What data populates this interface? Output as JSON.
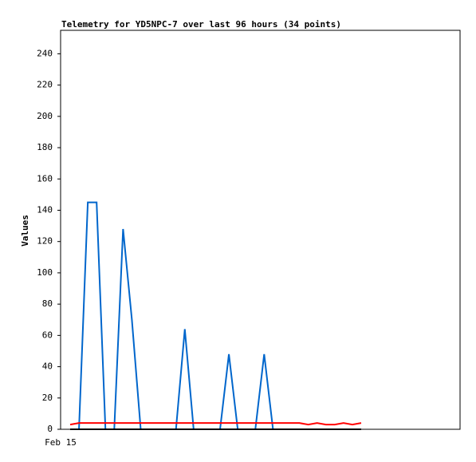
{
  "chart_data": {
    "type": "line",
    "title": "Telemetry for YD5NPC-7 over last 96 hours (34 points)",
    "y_label": "Values",
    "categories": [
      "Feb 15",
      null,
      null,
      null,
      null,
      null,
      null,
      null,
      null,
      null,
      null,
      null,
      null,
      null,
      null,
      null,
      null,
      null,
      null,
      null,
      null,
      null,
      null,
      null,
      null,
      null,
      null,
      null,
      null,
      null,
      null,
      null,
      null,
      null
    ],
    "series": [
      {
        "color": "#0066cc",
        "values": [
          0,
          0,
          145,
          145,
          0,
          0,
          128,
          70,
          0,
          0,
          0,
          0,
          0,
          64,
          0,
          0,
          0,
          0,
          48,
          0,
          0,
          0,
          48,
          0,
          0,
          0,
          0,
          0,
          0,
          0,
          0,
          0,
          0,
          0
        ]
      },
      {
        "color": "#ff0000",
        "values": [
          3,
          4,
          4,
          4,
          4,
          4,
          4,
          4,
          4,
          4,
          4,
          4,
          4,
          4,
          4,
          4,
          4,
          4,
          4,
          4,
          4,
          4,
          4,
          4,
          4,
          4,
          4,
          3,
          4,
          3,
          3,
          4,
          3,
          4
        ]
      },
      {
        "color": "#000000",
        "values": [
          0,
          0,
          0,
          0,
          0,
          0,
          0,
          0,
          0,
          0,
          0,
          0,
          0,
          0,
          0,
          0,
          0,
          0,
          0,
          0,
          0,
          0,
          0,
          0,
          0,
          0,
          0,
          0,
          0,
          0,
          0,
          0,
          0,
          0
        ]
      }
    ],
    "ylim": [
      0,
      255
    ],
    "yticks": [
      0,
      20,
      40,
      60,
      80,
      100,
      120,
      140,
      160,
      180,
      200,
      220,
      240
    ]
  }
}
